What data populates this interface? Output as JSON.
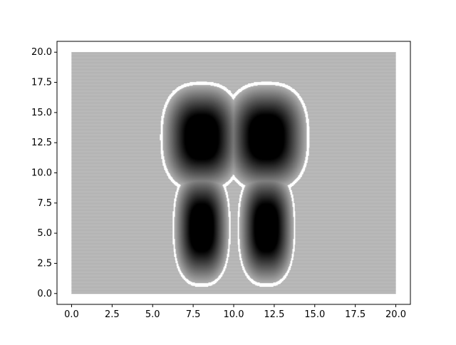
{
  "chart_data": {
    "type": "heatmap",
    "title": "",
    "xlabel": "",
    "ylabel": "",
    "xlim": [
      -0.9,
      20.9
    ],
    "ylim": [
      -0.9,
      20.9
    ],
    "grid_domain": {
      "x": [
        0,
        20
      ],
      "y": [
        0,
        20
      ]
    },
    "x_ticks": [
      "0.0",
      "2.5",
      "5.0",
      "7.5",
      "10.0",
      "12.5",
      "15.0",
      "17.5",
      "20.0"
    ],
    "y_ticks": [
      "0.0",
      "2.5",
      "5.0",
      "7.5",
      "10.0",
      "12.5",
      "15.0",
      "17.5",
      "20.0"
    ],
    "colormap": "dense grey point grid; darkness increases toward lobe centers, white outline rings around each lobe",
    "lobes": [
      {
        "name": "upper-left",
        "center": [
          8.0,
          13.0
        ],
        "x_range": [
          5.5,
          10.5
        ],
        "y_range": [
          9.6,
          18.6
        ]
      },
      {
        "name": "upper-right",
        "center": [
          12.0,
          13.0
        ],
        "x_range": [
          9.5,
          14.7
        ],
        "y_range": [
          9.6,
          18.6
        ]
      },
      {
        "name": "lower-left",
        "center": [
          8.0,
          5.5
        ],
        "x_range": [
          6.5,
          10.0
        ],
        "y_range": [
          0.8,
          10.4
        ]
      },
      {
        "name": "lower-right",
        "center": [
          12.0,
          5.5
        ],
        "x_range": [
          10.0,
          13.5
        ],
        "y_range": [
          0.8,
          10.4
        ]
      }
    ],
    "colors": {
      "background_point": "#9a9a9a",
      "lobe_core": "#000000",
      "lobe_outline": "#ffffff",
      "axes": "#000000"
    }
  }
}
